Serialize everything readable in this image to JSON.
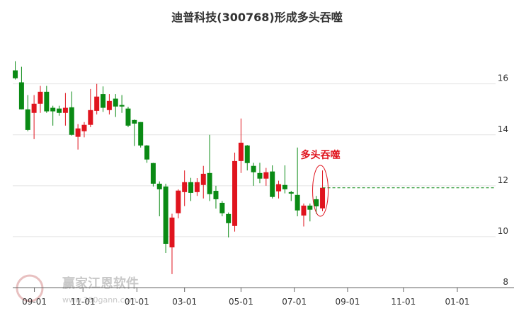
{
  "chart_data": {
    "type": "candlestick",
    "title": "迪普科技(300768)形成多头吞噬",
    "annotation": "多头吞噬",
    "watermark": "赢家江恩软件",
    "watermark_url": "www.360gann.com",
    "up_color": "#e0141e",
    "down_color": "#0a8a14",
    "grid": true,
    "open": [
      16.53,
      16.06,
      15.0,
      14.86,
      15.22,
      15.69,
      15.06,
      15.03,
      14.86,
      15.08,
      13.92,
      14.14,
      14.39,
      14.94,
      15.6,
      14.97,
      15.42,
      15.17,
      15.03,
      14.58,
      14.5,
      13.58,
      12.89,
      12.08,
      11.97,
      9.58,
      10.92,
      11.75,
      12.14,
      11.75,
      12.03,
      12.5,
      11.8,
      11.33,
      10.89,
      10.42,
      12.97,
      13.58,
      12.78,
      12.5,
      12.28,
      12.56,
      11.78,
      12.03,
      11.75,
      11.64,
      10.83,
      11.22,
      11.47,
      11.11
    ],
    "high": [
      16.89,
      16.67,
      15.56,
      15.56,
      15.92,
      15.92,
      15.14,
      15.14,
      15.64,
      15.7,
      14.42,
      14.5,
      15.8,
      16.0,
      15.9,
      15.6,
      15.6,
      15.56,
      15.1,
      14.6,
      14.5,
      13.6,
      12.9,
      12.17,
      12.08,
      10.9,
      11.86,
      12.6,
      12.31,
      12.3,
      12.78,
      14.0,
      12.0,
      11.4,
      10.95,
      13.3,
      14.64,
      13.6,
      12.9,
      12.9,
      12.7,
      12.8,
      12.2,
      12.8,
      11.8,
      13.5,
      11.3,
      11.3,
      11.6,
      12.6
    ],
    "low": [
      16.17,
      15.0,
      14.14,
      13.83,
      14.86,
      14.86,
      14.36,
      14.75,
      14.36,
      13.97,
      13.42,
      13.9,
      14.3,
      14.8,
      14.9,
      14.8,
      14.7,
      14.86,
      14.3,
      13.56,
      13.5,
      12.9,
      11.97,
      10.8,
      9.36,
      8.53,
      10.72,
      11.2,
      11.4,
      11.6,
      11.5,
      11.4,
      11.1,
      10.8,
      9.97,
      10.2,
      12.5,
      12.6,
      12.0,
      12.1,
      12.0,
      11.5,
      11.5,
      11.7,
      11.4,
      10.8,
      10.4,
      10.6,
      10.9,
      11.0
    ],
    "close": [
      16.22,
      15.0,
      14.19,
      15.22,
      15.69,
      14.92,
      14.92,
      14.86,
      15.06,
      14.0,
      14.25,
      14.39,
      14.97,
      15.5,
      15.06,
      15.33,
      15.11,
      15.11,
      14.36,
      14.44,
      13.58,
      13.03,
      12.08,
      11.86,
      9.72,
      10.75,
      11.81,
      12.14,
      11.72,
      12.14,
      12.47,
      11.67,
      11.47,
      10.92,
      10.53,
      12.97,
      13.69,
      12.89,
      12.53,
      12.28,
      12.53,
      11.56,
      12.06,
      11.86,
      11.69,
      11.03,
      11.22,
      11.06,
      11.19,
      11.92
    ],
    "xlim": [
      -0.4,
      76.6
    ],
    "xticks": [
      {
        "value": 3.05,
        "label": "09-01"
      },
      {
        "value": 10.8,
        "label": "11-01"
      },
      {
        "value": 19.4,
        "label": "01-01"
      },
      {
        "value": 27.0,
        "label": "03-01"
      },
      {
        "value": 36.0,
        "label": "05-01"
      },
      {
        "value": 44.5,
        "label": "07-01"
      },
      {
        "value": 53.0,
        "label": "09-01"
      },
      {
        "value": 61.9,
        "label": "11-01"
      },
      {
        "value": 70.5,
        "label": "01-01"
      }
    ],
    "ylim": [
      8,
      17.6
    ],
    "yticks": [
      8,
      10,
      12,
      14,
      16
    ]
  }
}
